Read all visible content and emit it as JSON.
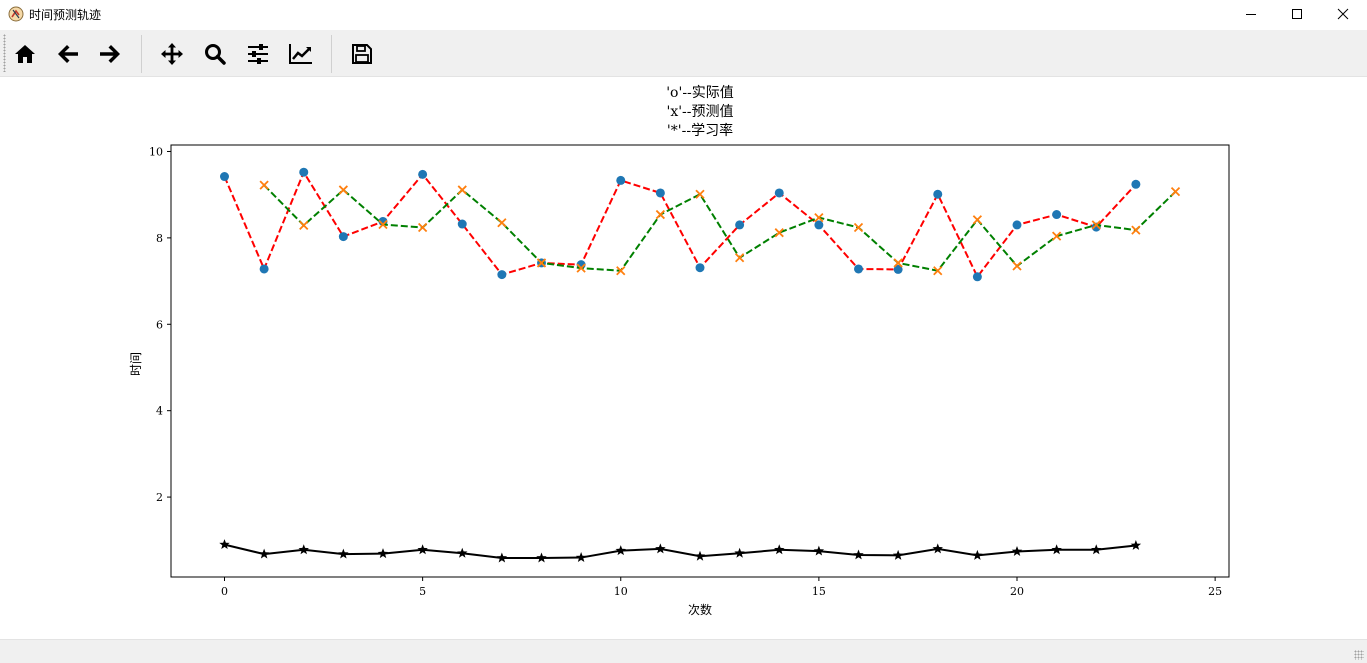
{
  "window": {
    "title": "时间预测轨迹"
  },
  "toolbar": {
    "buttons": [
      {
        "name": "home-button",
        "icon": "home-icon"
      },
      {
        "name": "back-button",
        "icon": "arrow-left-icon"
      },
      {
        "name": "forward-button",
        "icon": "arrow-right-icon"
      },
      {
        "name": "pan-button",
        "icon": "move-icon"
      },
      {
        "name": "zoom-button",
        "icon": "search-icon"
      },
      {
        "name": "configure-subplots-button",
        "icon": "sliders-icon"
      },
      {
        "name": "edit-axis-button",
        "icon": "line-chart-icon"
      },
      {
        "name": "save-button",
        "icon": "floppy-disk-icon"
      }
    ]
  },
  "chart_data": {
    "type": "line",
    "title_lines": [
      "'o'--实际值",
      "'x'--预测值",
      "'*'--学习率"
    ],
    "xlabel": "次数",
    "ylabel": "时间",
    "xlim": [
      -1.35,
      25.35
    ],
    "ylim": [
      0.15,
      10.15
    ],
    "xticks": [
      0,
      5,
      10,
      15,
      20,
      25
    ],
    "yticks": [
      2,
      4,
      6,
      8,
      10
    ],
    "grid": false,
    "colors": {
      "actual_marker": "#1f77b4",
      "predicted_marker": "#ff7f0e",
      "actual_line": "#ff0000",
      "predicted_line": "#008000",
      "lr_line": "#000000"
    },
    "series": [
      {
        "marker": "o",
        "style": "red-dashed",
        "x": [
          0,
          1,
          2,
          3,
          4,
          5,
          6,
          7,
          8,
          9,
          10,
          11,
          12,
          13,
          14,
          15,
          16,
          17,
          18,
          19,
          20,
          21,
          22,
          23
        ],
        "values": [
          9.42,
          7.28,
          9.52,
          8.03,
          8.38,
          9.47,
          8.32,
          7.15,
          7.42,
          7.38,
          9.33,
          9.04,
          7.31,
          8.3,
          9.04,
          8.3,
          7.28,
          7.27,
          9.01,
          7.1,
          8.3,
          8.54,
          8.25,
          9.24
        ]
      },
      {
        "marker": "x",
        "style": "green-dashed",
        "x": [
          1,
          2,
          3,
          4,
          5,
          6,
          7,
          8,
          9,
          10,
          11,
          12,
          13,
          14,
          15,
          16,
          17,
          18,
          19,
          20,
          21,
          22,
          23,
          24
        ],
        "values": [
          9.22,
          8.29,
          9.11,
          8.31,
          8.24,
          9.11,
          8.35,
          7.42,
          7.3,
          7.24,
          8.54,
          9.01,
          7.54,
          8.12,
          8.47,
          8.24,
          7.42,
          7.24,
          8.42,
          7.35,
          8.04,
          8.3,
          8.18,
          9.07
        ]
      },
      {
        "marker": "*",
        "style": "black-solid",
        "x": [
          0,
          1,
          2,
          3,
          4,
          5,
          6,
          7,
          8,
          9,
          10,
          11,
          12,
          13,
          14,
          15,
          16,
          17,
          18,
          19,
          20,
          21,
          22,
          23
        ],
        "values": [
          0.9,
          0.68,
          0.78,
          0.68,
          0.69,
          0.78,
          0.7,
          0.59,
          0.59,
          0.6,
          0.76,
          0.8,
          0.63,
          0.7,
          0.78,
          0.75,
          0.66,
          0.65,
          0.8,
          0.65,
          0.74,
          0.78,
          0.78,
          0.88
        ]
      }
    ]
  }
}
